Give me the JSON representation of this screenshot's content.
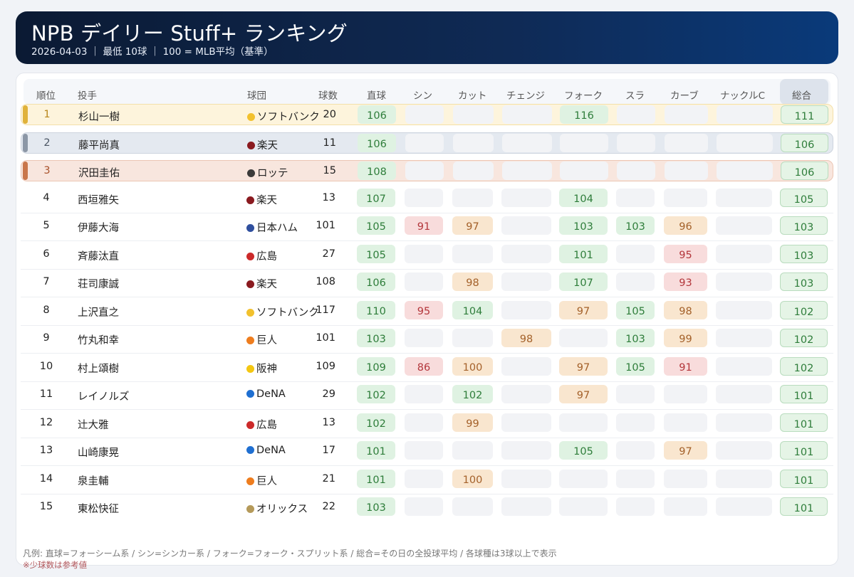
{
  "header": {
    "title": "NPB デイリー Stuff+ ランキング",
    "subtitle": "2026-04-03 ｜ 最低 10球 ｜ 100 = MLB平均（基準）"
  },
  "columns": {
    "rank": "順位",
    "pitcher": "投手",
    "team": "球団",
    "pitches": "球数",
    "fastball": "直球",
    "sinker": "シン",
    "cutter": "カット",
    "changeup": "チェンジ",
    "fork": "フォーク",
    "slider": "スラ",
    "curve": "カーブ",
    "knuckle_curve": "ナックルC",
    "total": "総合"
  },
  "colors": {
    "top1_bar": "#e0b23a",
    "top2_bar": "#8c97a6",
    "top3_bar": "#c9764a",
    "green": "#2e7d3a",
    "orange": "#a4612a",
    "red": "#b3363b"
  },
  "rows": [
    {
      "rank": "1",
      "name": "杉山一樹",
      "team": "ソフトバンク",
      "team_color": "#f2c12e",
      "pitches": "20",
      "fastball": "106",
      "sinker": "",
      "cutter": "",
      "changeup": "",
      "fork": "116",
      "slider": "",
      "curve": "",
      "knuckle_curve": "",
      "total": "111"
    },
    {
      "rank": "2",
      "name": "藤平尚真",
      "team": "楽天",
      "team_color": "#8a1a1f",
      "pitches": "11",
      "fastball": "106",
      "sinker": "",
      "cutter": "",
      "changeup": "",
      "fork": "",
      "slider": "",
      "curve": "",
      "knuckle_curve": "",
      "total": "106"
    },
    {
      "rank": "3",
      "name": "沢田圭佑",
      "team": "ロッテ",
      "team_color": "#3b3b3b",
      "pitches": "15",
      "fastball": "108",
      "sinker": "",
      "cutter": "",
      "changeup": "",
      "fork": "",
      "slider": "",
      "curve": "",
      "knuckle_curve": "",
      "total": "106"
    },
    {
      "rank": "4",
      "name": "西垣雅矢",
      "team": "楽天",
      "team_color": "#8a1a1f",
      "pitches": "13",
      "fastball": "107",
      "sinker": "",
      "cutter": "",
      "changeup": "",
      "fork": "104",
      "slider": "",
      "curve": "",
      "knuckle_curve": "",
      "total": "105"
    },
    {
      "rank": "5",
      "name": "伊藤大海",
      "team": "日本ハム",
      "team_color": "#2f4f9e",
      "pitches": "101",
      "fastball": "105",
      "sinker": "91",
      "cutter": "97",
      "changeup": "",
      "fork": "103",
      "slider": "103",
      "curve": "96",
      "knuckle_curve": "",
      "total": "103"
    },
    {
      "rank": "6",
      "name": "斉藤汰直",
      "team": "広島",
      "team_color": "#cc2a2a",
      "pitches": "27",
      "fastball": "105",
      "sinker": "",
      "cutter": "",
      "changeup": "",
      "fork": "101",
      "slider": "",
      "curve": "95",
      "knuckle_curve": "",
      "total": "103"
    },
    {
      "rank": "7",
      "name": "荘司康誠",
      "team": "楽天",
      "team_color": "#8a1a1f",
      "pitches": "108",
      "fastball": "106",
      "sinker": "",
      "cutter": "98",
      "changeup": "",
      "fork": "107",
      "slider": "",
      "curve": "93",
      "knuckle_curve": "",
      "total": "103"
    },
    {
      "rank": "8",
      "name": "上沢直之",
      "team": "ソフトバンク",
      "team_color": "#f2c12e",
      "pitches": "117",
      "fastball": "110",
      "sinker": "95",
      "cutter": "104",
      "changeup": "",
      "fork": "97",
      "slider": "105",
      "curve": "98",
      "knuckle_curve": "",
      "total": "102"
    },
    {
      "rank": "9",
      "name": "竹丸和幸",
      "team": "巨人",
      "team_color": "#ee7d1e",
      "pitches": "101",
      "fastball": "103",
      "sinker": "",
      "cutter": "",
      "changeup": "98",
      "fork": "",
      "slider": "103",
      "curve": "99",
      "knuckle_curve": "",
      "total": "102"
    },
    {
      "rank": "10",
      "name": "村上頌樹",
      "team": "阪神",
      "team_color": "#f4c712",
      "pitches": "109",
      "fastball": "109",
      "sinker": "86",
      "cutter": "100",
      "changeup": "",
      "fork": "97",
      "slider": "105",
      "curve": "91",
      "knuckle_curve": "",
      "total": "102"
    },
    {
      "rank": "11",
      "name": "レイノルズ",
      "team": "DeNA",
      "team_color": "#1f6fd1",
      "pitches": "29",
      "fastball": "102",
      "sinker": "",
      "cutter": "102",
      "changeup": "",
      "fork": "97",
      "slider": "",
      "curve": "",
      "knuckle_curve": "",
      "total": "101"
    },
    {
      "rank": "12",
      "name": "辻大雅",
      "team": "広島",
      "team_color": "#cc2a2a",
      "pitches": "13",
      "fastball": "102",
      "sinker": "",
      "cutter": "99",
      "changeup": "",
      "fork": "",
      "slider": "",
      "curve": "",
      "knuckle_curve": "",
      "total": "101"
    },
    {
      "rank": "13",
      "name": "山崎康晃",
      "team": "DeNA",
      "team_color": "#1f6fd1",
      "pitches": "17",
      "fastball": "101",
      "sinker": "",
      "cutter": "",
      "changeup": "",
      "fork": "105",
      "slider": "",
      "curve": "97",
      "knuckle_curve": "",
      "total": "101"
    },
    {
      "rank": "14",
      "name": "泉圭輔",
      "team": "巨人",
      "team_color": "#ee7d1e",
      "pitches": "21",
      "fastball": "101",
      "sinker": "",
      "cutter": "100",
      "changeup": "",
      "fork": "",
      "slider": "",
      "curve": "",
      "knuckle_curve": "",
      "total": "101"
    },
    {
      "rank": "15",
      "name": "東松快征",
      "team": "オリックス",
      "team_color": "#b59a5a",
      "pitches": "22",
      "fastball": "103",
      "sinker": "",
      "cutter": "",
      "changeup": "",
      "fork": "",
      "slider": "",
      "curve": "",
      "knuckle_curve": "",
      "total": "101"
    }
  ],
  "legend": "凡例: 直球=フォーシーム系 / シン=シンカー系 / フォーク=フォーク・スプリット系 / 総合=その日の全投球平均 / 各球種は3球以上で表示",
  "note": "※少球数は参考値"
}
